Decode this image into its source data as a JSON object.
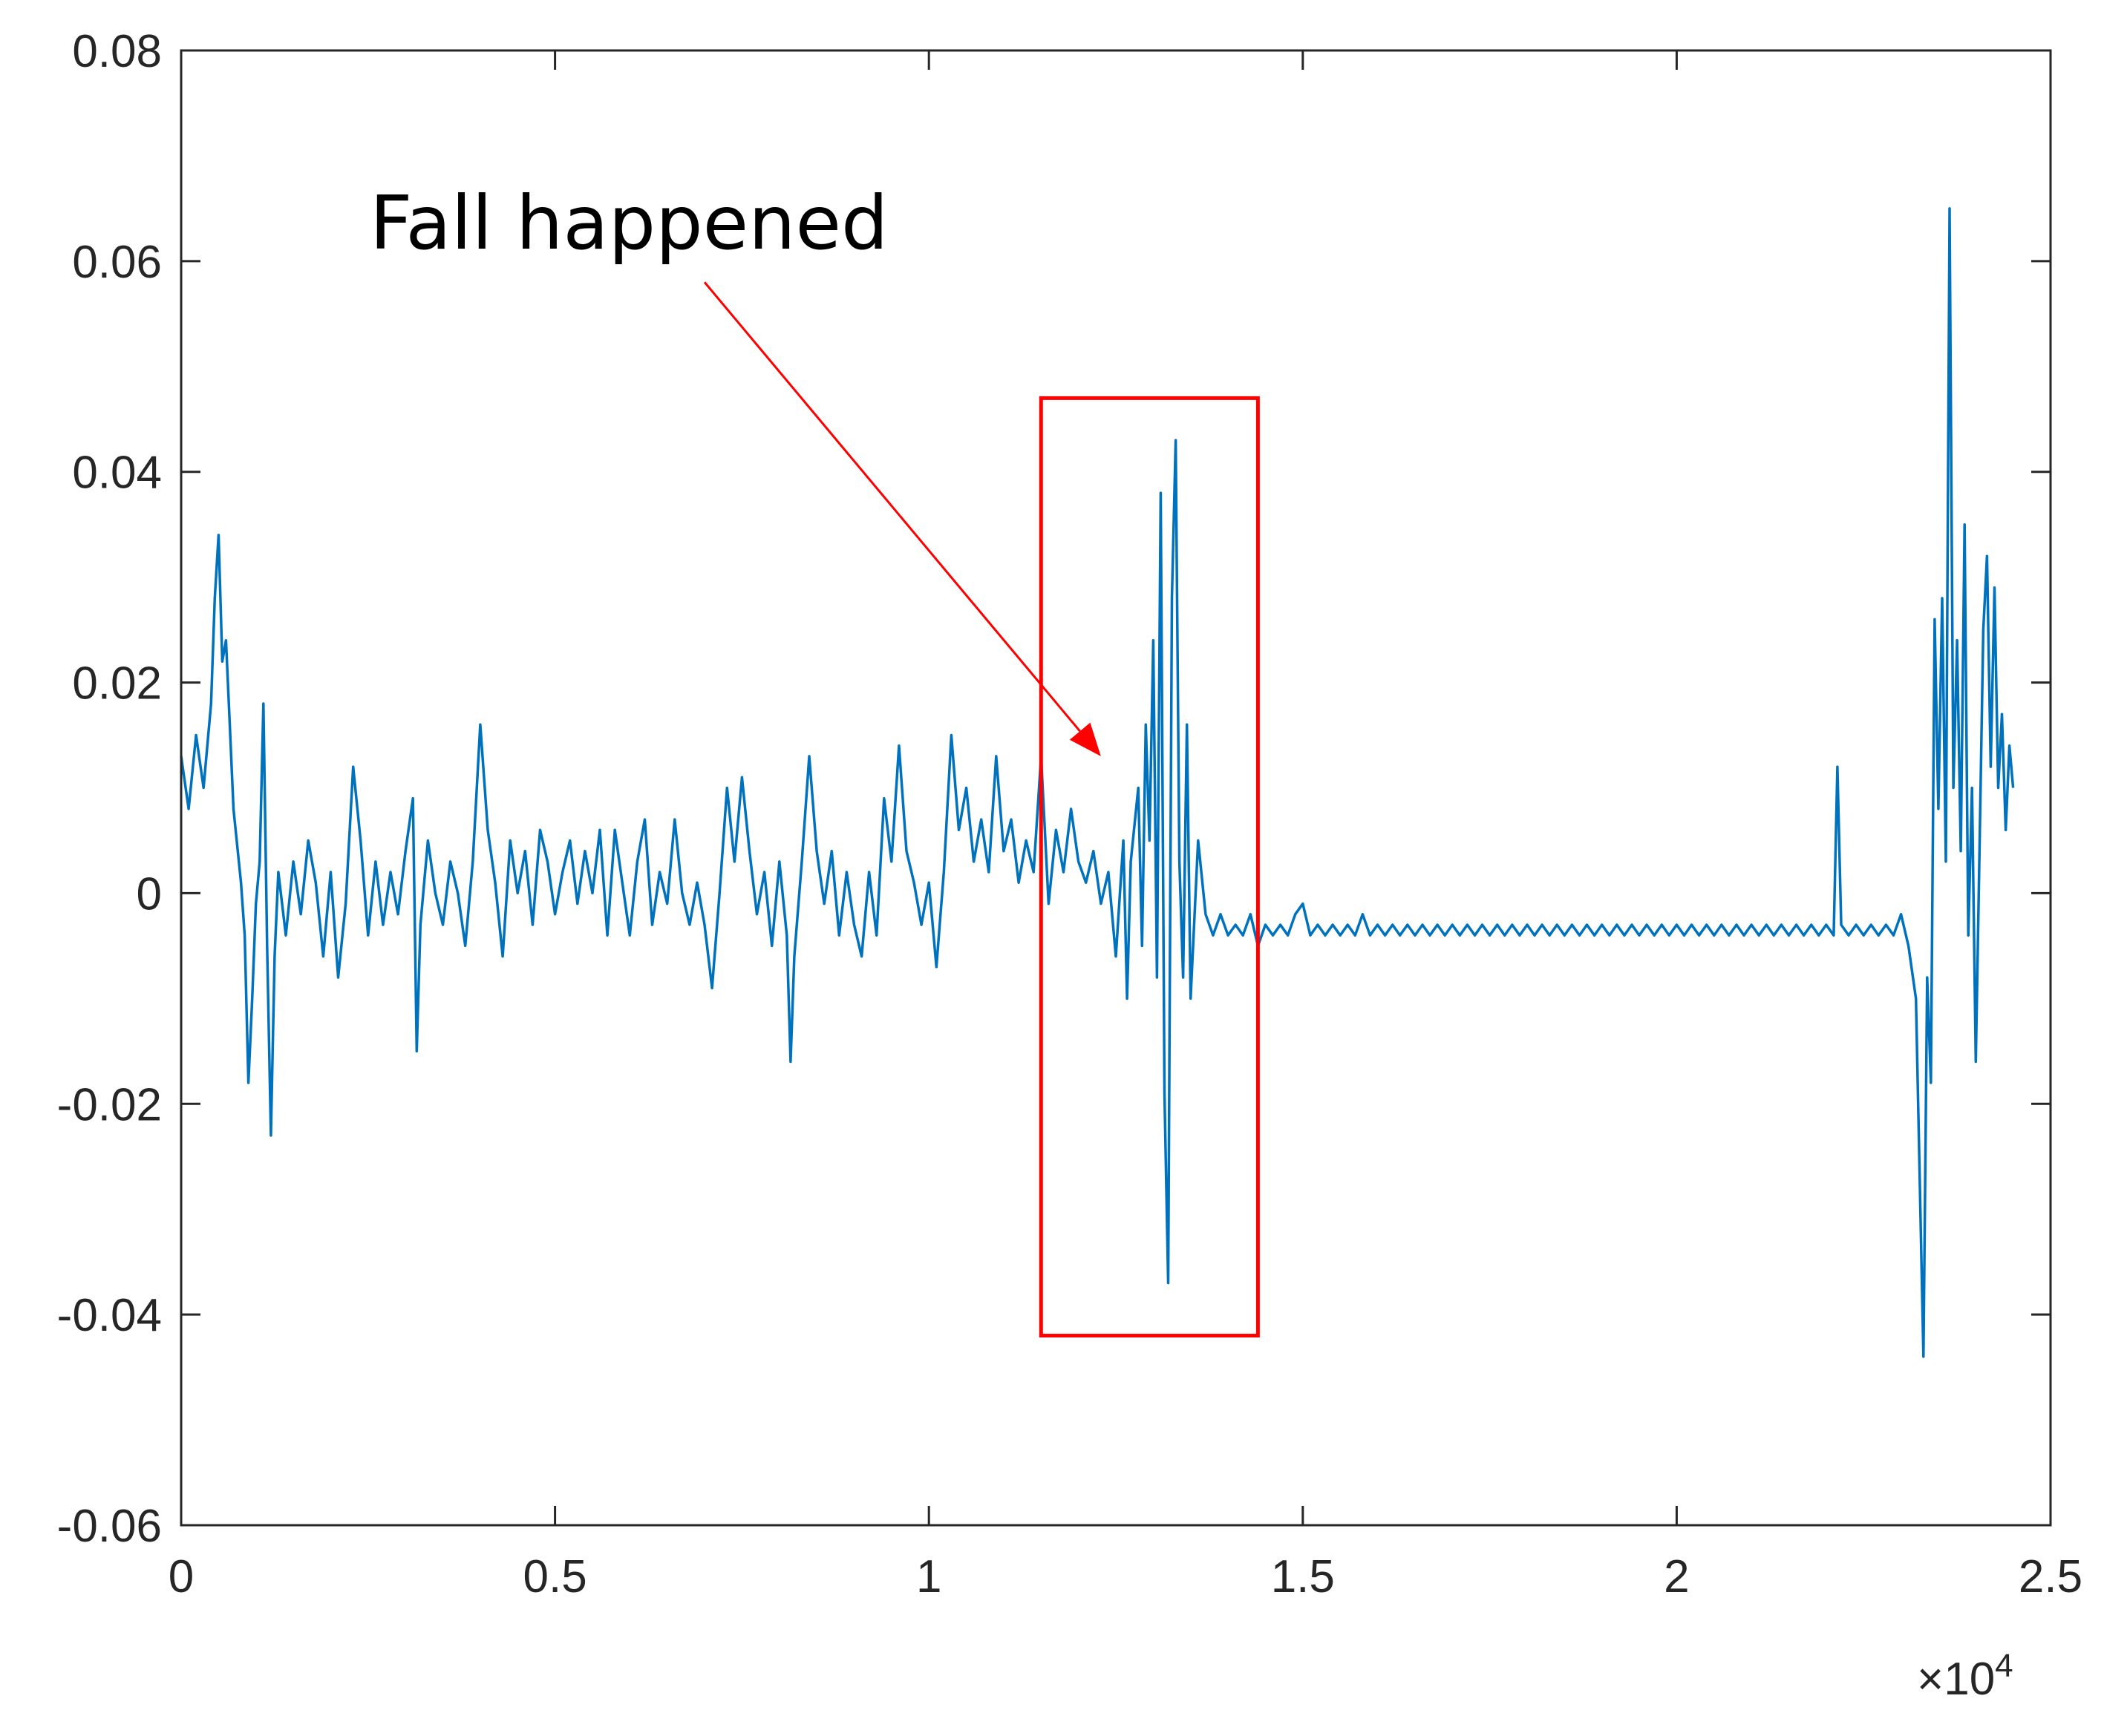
{
  "chart_data": {
    "type": "line",
    "title": "",
    "xlabel": "",
    "ylabel": "",
    "xlim": [
      0,
      25000
    ],
    "ylim": [
      -0.06,
      0.08
    ],
    "x_exponent_label": "×10",
    "x_exponent_power": "4",
    "x_ticks": [
      {
        "value": 0,
        "label": "0"
      },
      {
        "value": 5000,
        "label": "0.5"
      },
      {
        "value": 10000,
        "label": "1"
      },
      {
        "value": 15000,
        "label": "1.5"
      },
      {
        "value": 20000,
        "label": "2"
      },
      {
        "value": 25000,
        "label": "2.5"
      }
    ],
    "y_ticks": [
      {
        "value": 0.08,
        "label": "0.08"
      },
      {
        "value": 0.06,
        "label": "0.06"
      },
      {
        "value": 0.04,
        "label": "0.04"
      },
      {
        "value": 0.02,
        "label": "0.02"
      },
      {
        "value": 0,
        "label": "0"
      },
      {
        "value": -0.02,
        "label": "-0.02"
      },
      {
        "value": -0.04,
        "label": "-0.04"
      },
      {
        "value": -0.06,
        "label": "-0.06"
      }
    ],
    "grid": false,
    "series": [
      {
        "color": "#0072BD",
        "points": [
          [
            0,
            0.013
          ],
          [
            100,
            0.008
          ],
          [
            200,
            0.015
          ],
          [
            300,
            0.01
          ],
          [
            400,
            0.018
          ],
          [
            450,
            0.028
          ],
          [
            500,
            0.034
          ],
          [
            550,
            0.022
          ],
          [
            600,
            0.024
          ],
          [
            650,
            0.016
          ],
          [
            700,
            0.008
          ],
          [
            800,
            0.001
          ],
          [
            850,
            -0.004
          ],
          [
            900,
            -0.018
          ],
          [
            950,
            -0.01
          ],
          [
            1000,
            -0.001
          ],
          [
            1050,
            0.003
          ],
          [
            1100,
            0.018
          ],
          [
            1150,
            -0.005
          ],
          [
            1200,
            -0.023
          ],
          [
            1250,
            -0.006
          ],
          [
            1300,
            0.002
          ],
          [
            1400,
            -0.004
          ],
          [
            1500,
            0.003
          ],
          [
            1600,
            -0.002
          ],
          [
            1700,
            0.005
          ],
          [
            1800,
            0.001
          ],
          [
            1900,
            -0.006
          ],
          [
            2000,
            0.002
          ],
          [
            2100,
            -0.008
          ],
          [
            2200,
            -0.001
          ],
          [
            2300,
            0.012
          ],
          [
            2400,
            0.005
          ],
          [
            2500,
            -0.004
          ],
          [
            2600,
            0.003
          ],
          [
            2700,
            -0.003
          ],
          [
            2800,
            0.002
          ],
          [
            2900,
            -0.002
          ],
          [
            3000,
            0.004
          ],
          [
            3100,
            0.009
          ],
          [
            3150,
            -0.015
          ],
          [
            3200,
            -0.003
          ],
          [
            3300,
            0.005
          ],
          [
            3400,
            0.0
          ],
          [
            3500,
            -0.003
          ],
          [
            3600,
            0.003
          ],
          [
            3700,
            0.0
          ],
          [
            3800,
            -0.005
          ],
          [
            3900,
            0.003
          ],
          [
            4000,
            0.016
          ],
          [
            4100,
            0.006
          ],
          [
            4200,
            0.001
          ],
          [
            4300,
            -0.006
          ],
          [
            4400,
            0.005
          ],
          [
            4500,
            0.0
          ],
          [
            4600,
            0.004
          ],
          [
            4700,
            -0.003
          ],
          [
            4800,
            0.006
          ],
          [
            4900,
            0.003
          ],
          [
            5000,
            -0.002
          ],
          [
            5100,
            0.002
          ],
          [
            5200,
            0.005
          ],
          [
            5300,
            -0.001
          ],
          [
            5400,
            0.004
          ],
          [
            5500,
            0.0
          ],
          [
            5600,
            0.006
          ],
          [
            5700,
            -0.004
          ],
          [
            5800,
            0.006
          ],
          [
            5900,
            0.001
          ],
          [
            6000,
            -0.004
          ],
          [
            6100,
            0.003
          ],
          [
            6200,
            0.007
          ],
          [
            6300,
            -0.003
          ],
          [
            6400,
            0.002
          ],
          [
            6500,
            -0.001
          ],
          [
            6600,
            0.007
          ],
          [
            6700,
            0.0
          ],
          [
            6800,
            -0.003
          ],
          [
            6900,
            0.001
          ],
          [
            7000,
            -0.003
          ],
          [
            7100,
            -0.009
          ],
          [
            7200,
            0.0
          ],
          [
            7300,
            0.01
          ],
          [
            7400,
            0.003
          ],
          [
            7500,
            0.011
          ],
          [
            7600,
            0.004
          ],
          [
            7700,
            -0.002
          ],
          [
            7800,
            0.002
          ],
          [
            7900,
            -0.005
          ],
          [
            8000,
            0.003
          ],
          [
            8100,
            -0.004
          ],
          [
            8150,
            -0.016
          ],
          [
            8200,
            -0.006
          ],
          [
            8300,
            0.003
          ],
          [
            8400,
            0.013
          ],
          [
            8500,
            0.004
          ],
          [
            8600,
            -0.001
          ],
          [
            8700,
            0.004
          ],
          [
            8800,
            -0.004
          ],
          [
            8900,
            0.002
          ],
          [
            9000,
            -0.003
          ],
          [
            9100,
            -0.006
          ],
          [
            9200,
            0.002
          ],
          [
            9300,
            -0.004
          ],
          [
            9400,
            0.009
          ],
          [
            9500,
            0.003
          ],
          [
            9600,
            0.014
          ],
          [
            9700,
            0.004
          ],
          [
            9800,
            0.001
          ],
          [
            9900,
            -0.003
          ],
          [
            10000,
            0.001
          ],
          [
            10100,
            -0.007
          ],
          [
            10200,
            0.002
          ],
          [
            10300,
            0.015
          ],
          [
            10400,
            0.006
          ],
          [
            10500,
            0.01
          ],
          [
            10600,
            0.003
          ],
          [
            10700,
            0.007
          ],
          [
            10800,
            0.002
          ],
          [
            10900,
            0.013
          ],
          [
            11000,
            0.004
          ],
          [
            11100,
            0.007
          ],
          [
            11200,
            0.001
          ],
          [
            11300,
            0.005
          ],
          [
            11400,
            0.002
          ],
          [
            11500,
            0.013
          ],
          [
            11600,
            -0.001
          ],
          [
            11700,
            0.006
          ],
          [
            11800,
            0.002
          ],
          [
            11900,
            0.008
          ],
          [
            12000,
            0.003
          ],
          [
            12100,
            0.001
          ],
          [
            12200,
            0.004
          ],
          [
            12300,
            -0.001
          ],
          [
            12400,
            0.002
          ],
          [
            12500,
            -0.006
          ],
          [
            12600,
            0.005
          ],
          [
            12650,
            -0.01
          ],
          [
            12700,
            0.003
          ],
          [
            12800,
            0.01
          ],
          [
            12850,
            -0.005
          ],
          [
            12900,
            0.016
          ],
          [
            12950,
            0.005
          ],
          [
            13000,
            0.024
          ],
          [
            13050,
            -0.008
          ],
          [
            13100,
            0.038
          ],
          [
            13150,
            -0.019
          ],
          [
            13200,
            -0.037
          ],
          [
            13250,
            0.028
          ],
          [
            13300,
            0.043
          ],
          [
            13350,
            0.003
          ],
          [
            13400,
            -0.008
          ],
          [
            13450,
            0.016
          ],
          [
            13500,
            -0.01
          ],
          [
            13600,
            0.005
          ],
          [
            13700,
            -0.002
          ],
          [
            13800,
            -0.004
          ],
          [
            13900,
            -0.002
          ],
          [
            14000,
            -0.004
          ],
          [
            14100,
            -0.003
          ],
          [
            14200,
            -0.004
          ],
          [
            14300,
            -0.002
          ],
          [
            14400,
            -0.005
          ],
          [
            14500,
            -0.003
          ],
          [
            14600,
            -0.004
          ],
          [
            14700,
            -0.003
          ],
          [
            14800,
            -0.004
          ],
          [
            14900,
            -0.002
          ],
          [
            15000,
            -0.001
          ],
          [
            15100,
            -0.004
          ],
          [
            15200,
            -0.003
          ],
          [
            15300,
            -0.004
          ],
          [
            15400,
            -0.003
          ],
          [
            15500,
            -0.004
          ],
          [
            15600,
            -0.003
          ],
          [
            15700,
            -0.004
          ],
          [
            15800,
            -0.002
          ],
          [
            15900,
            -0.004
          ],
          [
            16000,
            -0.003
          ],
          [
            16100,
            -0.004
          ],
          [
            16200,
            -0.003
          ],
          [
            16300,
            -0.004
          ],
          [
            16400,
            -0.003
          ],
          [
            16500,
            -0.004
          ],
          [
            16600,
            -0.003
          ],
          [
            16700,
            -0.004
          ],
          [
            16800,
            -0.003
          ],
          [
            16900,
            -0.004
          ],
          [
            17000,
            -0.003
          ],
          [
            17100,
            -0.004
          ],
          [
            17200,
            -0.003
          ],
          [
            17300,
            -0.004
          ],
          [
            17400,
            -0.003
          ],
          [
            17500,
            -0.004
          ],
          [
            17600,
            -0.003
          ],
          [
            17700,
            -0.004
          ],
          [
            17800,
            -0.003
          ],
          [
            17900,
            -0.004
          ],
          [
            18000,
            -0.003
          ],
          [
            18100,
            -0.004
          ],
          [
            18200,
            -0.003
          ],
          [
            18300,
            -0.004
          ],
          [
            18400,
            -0.003
          ],
          [
            18500,
            -0.004
          ],
          [
            18600,
            -0.003
          ],
          [
            18700,
            -0.004
          ],
          [
            18800,
            -0.003
          ],
          [
            18900,
            -0.004
          ],
          [
            19000,
            -0.003
          ],
          [
            19100,
            -0.004
          ],
          [
            19200,
            -0.003
          ],
          [
            19300,
            -0.004
          ],
          [
            19400,
            -0.003
          ],
          [
            19500,
            -0.004
          ],
          [
            19600,
            -0.003
          ],
          [
            19700,
            -0.004
          ],
          [
            19800,
            -0.003
          ],
          [
            19900,
            -0.004
          ],
          [
            20000,
            -0.003
          ],
          [
            20100,
            -0.004
          ],
          [
            20200,
            -0.003
          ],
          [
            20300,
            -0.004
          ],
          [
            20400,
            -0.003
          ],
          [
            20500,
            -0.004
          ],
          [
            20600,
            -0.003
          ],
          [
            20700,
            -0.004
          ],
          [
            20800,
            -0.003
          ],
          [
            20900,
            -0.004
          ],
          [
            21000,
            -0.003
          ],
          [
            21100,
            -0.004
          ],
          [
            21200,
            -0.003
          ],
          [
            21300,
            -0.004
          ],
          [
            21400,
            -0.003
          ],
          [
            21500,
            -0.004
          ],
          [
            21600,
            -0.003
          ],
          [
            21700,
            -0.004
          ],
          [
            21800,
            -0.003
          ],
          [
            21900,
            -0.004
          ],
          [
            22000,
            -0.003
          ],
          [
            22100,
            -0.004
          ],
          [
            22150,
            0.012
          ],
          [
            22200,
            -0.003
          ],
          [
            22300,
            -0.004
          ],
          [
            22400,
            -0.003
          ],
          [
            22500,
            -0.004
          ],
          [
            22600,
            -0.003
          ],
          [
            22700,
            -0.004
          ],
          [
            22800,
            -0.003
          ],
          [
            22900,
            -0.004
          ],
          [
            23000,
            -0.002
          ],
          [
            23100,
            -0.005
          ],
          [
            23200,
            -0.01
          ],
          [
            23300,
            -0.044
          ],
          [
            23350,
            -0.008
          ],
          [
            23400,
            -0.018
          ],
          [
            23450,
            0.026
          ],
          [
            23500,
            0.008
          ],
          [
            23550,
            0.028
          ],
          [
            23600,
            0.003
          ],
          [
            23650,
            0.065
          ],
          [
            23700,
            0.01
          ],
          [
            23750,
            0.024
          ],
          [
            23800,
            0.004
          ],
          [
            23850,
            0.035
          ],
          [
            23900,
            -0.004
          ],
          [
            23950,
            0.01
          ],
          [
            24000,
            -0.016
          ],
          [
            24050,
            0.004
          ],
          [
            24100,
            0.025
          ],
          [
            24150,
            0.032
          ],
          [
            24200,
            0.012
          ],
          [
            24250,
            0.029
          ],
          [
            24300,
            0.01
          ],
          [
            24350,
            0.017
          ],
          [
            24400,
            0.006
          ],
          [
            24450,
            0.014
          ],
          [
            24500,
            0.01
          ]
        ]
      }
    ],
    "annotations": [
      {
        "text": "Fall happened",
        "arrow_from": [
          7000,
          0.058
        ],
        "arrow_to": [
          12300,
          0.013
        ],
        "color": "#000000",
        "arrow_color": "#FF0000"
      }
    ],
    "highlight_rect": {
      "x": [
        11500,
        14400
      ],
      "y": [
        -0.042,
        0.047
      ],
      "color": "#FF0000"
    }
  }
}
